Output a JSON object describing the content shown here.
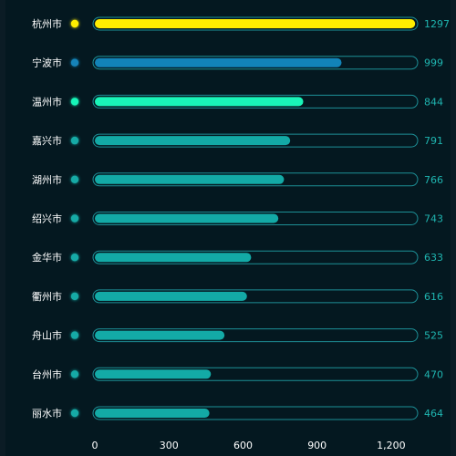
{
  "chart_data": {
    "type": "bar",
    "orientation": "horizontal",
    "categories": [
      "杭州市",
      "宁波市",
      "温州市",
      "嘉兴市",
      "湖州市",
      "绍兴市",
      "金华市",
      "衢州市",
      "舟山市",
      "台州市",
      "丽水市"
    ],
    "values": [
      1297,
      999,
      844,
      791,
      766,
      743,
      633,
      616,
      525,
      470,
      464
    ],
    "bar_colors": [
      "#ffee00",
      "#1283b8",
      "#19f5b8",
      "#13aaa6",
      "#13aaa6",
      "#13aaa6",
      "#13aaa6",
      "#13aaa6",
      "#13aaa6",
      "#13aaa6",
      "#13aaa6"
    ],
    "xlim": [
      0,
      1300
    ],
    "x_ticks": [
      0,
      300,
      600,
      900,
      1200
    ],
    "x_tick_labels": [
      "0",
      "300",
      "600",
      "900",
      "1,200"
    ],
    "grid": false,
    "legend": "none",
    "background": "#041820",
    "track_border_color": "#1d8f96",
    "value_label_color": "#1fb5b0"
  }
}
